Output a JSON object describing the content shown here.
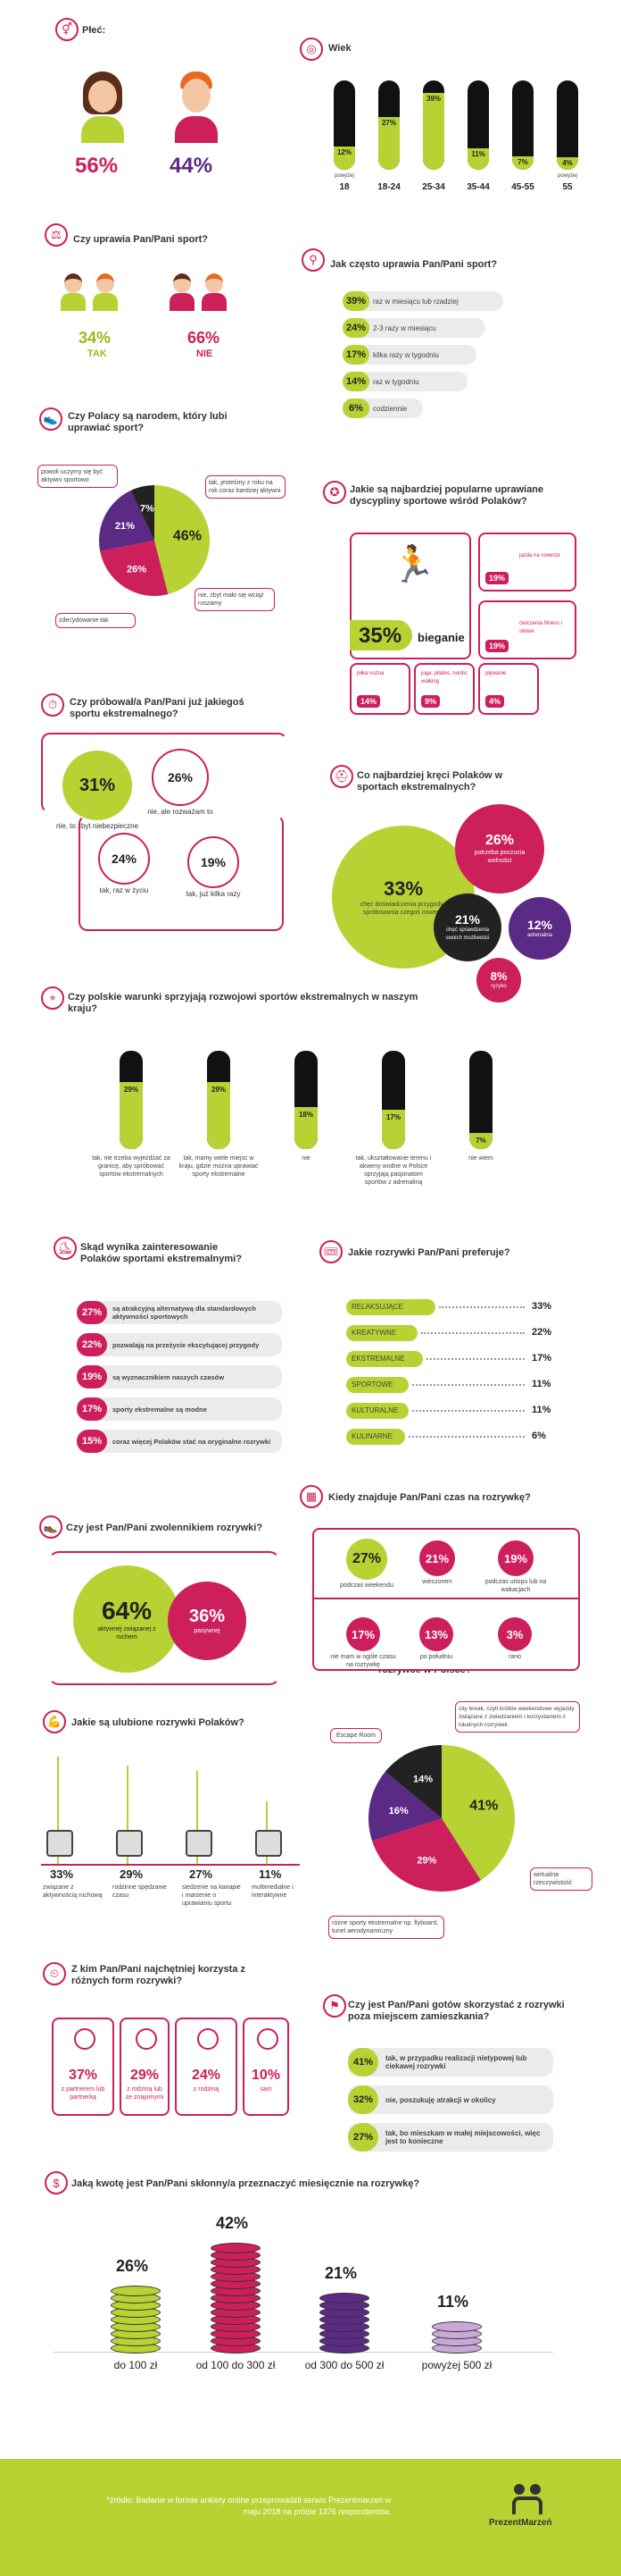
{
  "gender": {
    "title": "Płeć:",
    "female_pct": "56%",
    "male_pct": "44%"
  },
  "age": {
    "title": "Wiek",
    "bars": [
      {
        "pct": "12%",
        "label": "18",
        "note": "powyżej",
        "value": 12
      },
      {
        "pct": "27%",
        "label": "18-24",
        "note": "",
        "value": 27
      },
      {
        "pct": "39%",
        "label": "25-34",
        "note": "",
        "value": 39
      },
      {
        "pct": "11%",
        "label": "35-44",
        "note": "",
        "value": 11
      },
      {
        "pct": "7%",
        "label": "45-55",
        "note": "",
        "value": 7
      },
      {
        "pct": "4%",
        "label": "55",
        "note": "powyżej",
        "value": 4
      }
    ]
  },
  "sport": {
    "title": "Czy uprawia Pan/Pani sport?",
    "yes_pct": "34%",
    "yes_label": "TAK",
    "no_pct": "66%",
    "no_label": "NIE"
  },
  "frequency": {
    "title": "Jak często uprawia Pan/Pani sport?",
    "items": [
      {
        "pct": "39%",
        "label": "raz w miesiącu lub rzadziej"
      },
      {
        "pct": "24%",
        "label": "2-3 razy w miesiącu"
      },
      {
        "pct": "17%",
        "label": "kilka razy w tygodniu"
      },
      {
        "pct": "14%",
        "label": "raz w tygodniu"
      },
      {
        "pct": "6%",
        "label": "codziennie"
      }
    ]
  },
  "nation": {
    "title": "Czy Polacy są narodem, który lubi uprawiać sport?",
    "slices": [
      {
        "pct": "46%",
        "label": "powoli uczymy się być aktywni sportowo",
        "value": 46
      },
      {
        "pct": "26%",
        "label": "tak, jesteśmy z roku na rok coraz bardziej aktywni",
        "value": 26
      },
      {
        "pct": "21%",
        "label": "zdecydowanie tak",
        "value": 21
      },
      {
        "pct": "7%",
        "label": "nie, zbyt mało się wciąż ruszamy",
        "value": 7
      }
    ]
  },
  "popular": {
    "title": "Jakie są najbardziej popularne uprawiane dyscypliny sportowe wśród Polaków?",
    "main_pct": "35%",
    "main_label": "bieganie",
    "items": [
      {
        "pct": "19%",
        "label": "jazda na rowerze"
      },
      {
        "pct": "19%",
        "label": "ćwiczenia fitness i siłowe"
      },
      {
        "pct": "14%",
        "label": "piłka nożna"
      },
      {
        "pct": "9%",
        "label": "joga, pilates, nordic walking"
      },
      {
        "pct": "4%",
        "label": "pływanie"
      }
    ]
  },
  "extreme_tried": {
    "title": "Czy próbował/a Pan/Pani już jakiegoś sportu ekstremalnego?",
    "items": [
      {
        "pct": "31%",
        "label": "nie, to zbyt niebezpieczne"
      },
      {
        "pct": "26%",
        "label": "nie, ale rozważam to"
      },
      {
        "pct": "24%",
        "label": "tak, raz w życiu"
      },
      {
        "pct": "19%",
        "label": "tak, już kilka razy"
      }
    ]
  },
  "extreme_attract": {
    "title": "Co najbardziej kręci Polaków w sportach ekstremalnych?",
    "items": [
      {
        "pct": "33%",
        "label": "chęć doświadczenia przygody i spróbowania czegoś nowego"
      },
      {
        "pct": "26%",
        "label": "potrzeba poczucia wolności"
      },
      {
        "pct": "21%",
        "label": "chęć sprawdzenia swoich możliwości"
      },
      {
        "pct": "12%",
        "label": "adrenalina"
      },
      {
        "pct": "8%",
        "label": "ryzyko"
      }
    ]
  },
  "conditions": {
    "title": "Czy polskie warunki sprzyjają rozwojowi sportów ekstremalnych w naszym kraju?",
    "bars": [
      {
        "pct": "29%",
        "value": 29,
        "label": "tak, nie trzeba wyjeżdżać za granicę, aby spróbować sportów ekstremalnych"
      },
      {
        "pct": "29%",
        "value": 29,
        "label": "tak, mamy wiele miejsc w kraju, gdzie można uprawiać sporty ekstremalne"
      },
      {
        "pct": "18%",
        "value": 18,
        "label": "nie"
      },
      {
        "pct": "17%",
        "value": 17,
        "label": "tak, ukształtowanie terenu i akweny wodne w Polsce sprzyjają pasjonatom sportów z adrenaliną"
      },
      {
        "pct": "7%",
        "value": 7,
        "label": "nie wiem"
      }
    ]
  },
  "interest": {
    "title": "Skąd wynika zainteresowanie Polaków sportami ekstremalnymi?",
    "items": [
      {
        "pct": "27%",
        "label": "są atrakcyjną alternatywą dla standardowych aktywności sportowych"
      },
      {
        "pct": "22%",
        "label": "pozwalają na przeżycie ekscytującej przygody"
      },
      {
        "pct": "19%",
        "label": "są wyznacznikiem naszych czasów"
      },
      {
        "pct": "17%",
        "label": "sporty ekstremalne są modne"
      },
      {
        "pct": "15%",
        "label": "coraz więcej Polaków stać na oryginalne rozrywki"
      }
    ]
  },
  "entertainment_pref": {
    "title": "Jakie rozrywki Pan/Pani preferuje?",
    "items": [
      {
        "label": "RELAKSUJĄCE",
        "pct": "33%"
      },
      {
        "label": "KREATYWNE",
        "pct": "22%"
      },
      {
        "label": "EKSTREMALNE",
        "pct": "17%"
      },
      {
        "label": "SPORTOWE",
        "pct": "11%"
      },
      {
        "label": "KULTURALNE",
        "pct": "11%"
      },
      {
        "label": "KULINARNE",
        "pct": "6%"
      }
    ]
  },
  "time": {
    "title": "Kiedy znajduje Pan/Pani czas na rozrywkę?",
    "items": [
      {
        "pct": "27%",
        "label": "podczas weekendu"
      },
      {
        "pct": "21%",
        "label": "wieczorem"
      },
      {
        "pct": "19%",
        "label": "podczas urlopu lub na wakacjach"
      },
      {
        "pct": "17%",
        "label": "nie mam w ogóle czasu na rozrywkę"
      },
      {
        "pct": "13%",
        "label": "po południu"
      },
      {
        "pct": "3%",
        "label": "rano"
      }
    ]
  },
  "fan": {
    "title": "Czy jest Pan/Pani zwolennikiem rozrywki?",
    "active_pct": "64%",
    "active_label": "aktywnej związanej z ruchem",
    "passive_pct": "36%",
    "passive_label": "pasywnej"
  },
  "favorite": {
    "title": "Jakie są ulubione rozrywki Polaków?",
    "items": [
      {
        "pct": "33%",
        "label": "związane z aktywnością ruchową"
      },
      {
        "pct": "29%",
        "label": "rodzinne spędzanie czasu"
      },
      {
        "pct": "27%",
        "label": "siedzenie na kanapie i marzenie o uprawianiu sportu"
      },
      {
        "pct": "11%",
        "label": "multimedialne i interaktywne"
      }
    ]
  },
  "trend": {
    "title": "Co robi aktualnie furorę w rozrywce w Polsce?",
    "slices": [
      {
        "pct": "41%",
        "label": "Escape Room",
        "value": 41
      },
      {
        "pct": "29%",
        "label": "city break, czyli krótkie weekendowe wyjazdy związane z zwiedzaniem i korzystaniem z lokalnych rozrywek",
        "value": 29
      },
      {
        "pct": "16%",
        "label": "wirtualna rzeczywistość",
        "value": 16
      },
      {
        "pct": "14%",
        "label": "różne sporty ekstremalne np. flyboard, tunel aerodynamiczny",
        "value": 14
      }
    ]
  },
  "company": {
    "title": "Z kim Pan/Pani najchętniej korzysta z różnych form rozrywki?",
    "items": [
      {
        "pct": "37%",
        "label": "z partnerem lub partnerką"
      },
      {
        "pct": "29%",
        "label": "z rodziną lub ze znajomymi"
      },
      {
        "pct": "24%",
        "label": "z rodziną"
      },
      {
        "pct": "10%",
        "label": "sam"
      }
    ]
  },
  "travel": {
    "title": "Czy jest Pan/Pani gotów skorzystać z rozrywki poza miejscem zamieszkania?",
    "items": [
      {
        "pct": "41%",
        "label": "tak, w przypadku realizacji nietypowej lub ciekawej rozrywki"
      },
      {
        "pct": "32%",
        "label": "nie, poszukuję atrakcji w okolicy"
      },
      {
        "pct": "27%",
        "label": "tak, bo mieszkam w małej miejscowości, więc jest to konieczne"
      }
    ]
  },
  "budget": {
    "title": "Jaką kwotę jest Pan/Pani skłonny/a przeznaczyć miesięcznie na rozrywkę?",
    "items": [
      {
        "pct": "26%",
        "label": "do 100 zł",
        "value": 26
      },
      {
        "pct": "42%",
        "label": "od 100 do 300 zł",
        "value": 42
      },
      {
        "pct": "21%",
        "label": "od 300 do 500 zł",
        "value": 21
      },
      {
        "pct": "11%",
        "label": "powyżej 500 zł",
        "value": 11
      }
    ]
  },
  "footer": {
    "source": "*źródło: Badanie w formie ankiety online przeprowadził serwis Prezentmarzeń w maju 2018 na próbie 1376 respondentów.",
    "brand": "PrezentMarzeń"
  }
}
